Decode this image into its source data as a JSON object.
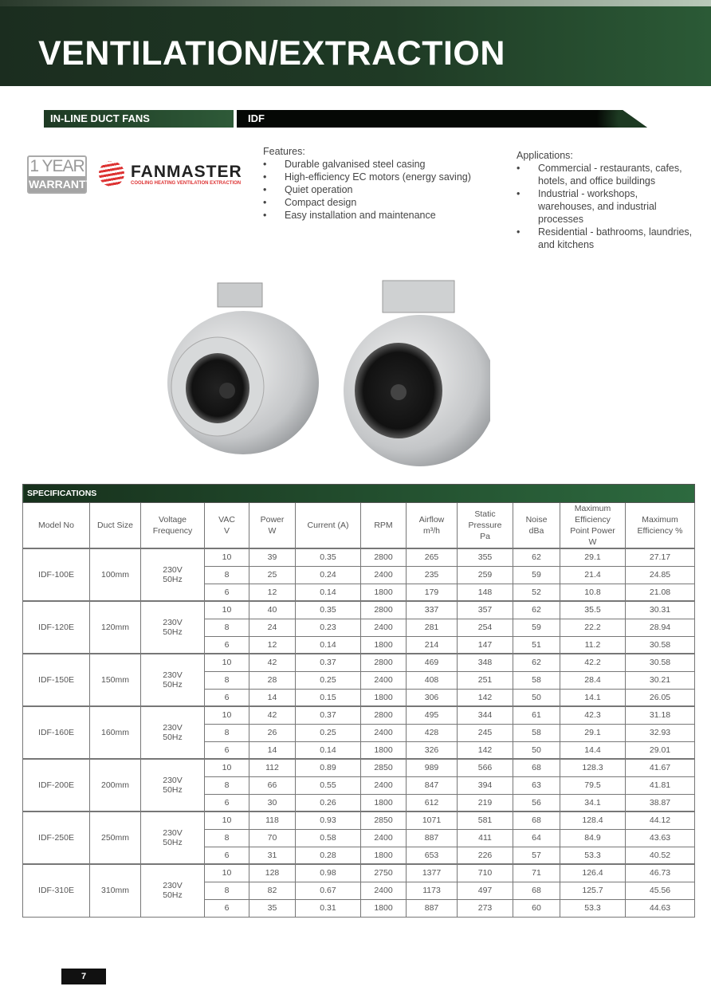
{
  "header": {
    "title": "VENTILATION/EXTRACTION"
  },
  "category": {
    "label": "IN-LINE DUCT FANS",
    "series": "IDF"
  },
  "warranty": {
    "line1": "1 YEAR",
    "line2": "WARRANTY"
  },
  "brand": {
    "name": "FANMASTER",
    "tagline": "COOLING HEATING VENTILATION EXTRACTION"
  },
  "features": {
    "heading": "Features:",
    "items": [
      "Durable galvanised steel casing",
      "High-efficiency EC motors (energy saving)",
      "Quiet operation",
      "Compact design",
      "Easy installation and maintenance"
    ]
  },
  "applications": {
    "heading": "Applications:",
    "items": [
      "Commercial - restaurants, cafes, hotels, and office buildings",
      "Industrial - workshops, warehouses, and industrial processes",
      "Residential - bathrooms, laundries, and kitchens"
    ]
  },
  "specs": {
    "title": "SPECIFICATIONS",
    "columns": [
      "Model No",
      "Duct Size",
      "Voltage\nFrequency",
      "VAC\nV",
      "Power\nW",
      "Current (A)",
      "RPM",
      "Airflow\nm³/h",
      "Static\nPressure\nPa",
      "Noise\ndBa",
      "Maximum\nEfficiency\nPoint Power\nW",
      "Maximum\nEfficiency %"
    ],
    "models": [
      {
        "model": "IDF-100E",
        "duct": "100mm",
        "voltage": "230V\n50Hz",
        "rows": [
          [
            "10",
            "39",
            "0.35",
            "2800",
            "265",
            "355",
            "62",
            "29.1",
            "27.17"
          ],
          [
            "8",
            "25",
            "0.24",
            "2400",
            "235",
            "259",
            "59",
            "21.4",
            "24.85"
          ],
          [
            "6",
            "12",
            "0.14",
            "1800",
            "179",
            "148",
            "52",
            "10.8",
            "21.08"
          ]
        ]
      },
      {
        "model": "IDF-120E",
        "duct": "120mm",
        "voltage": "230V\n50Hz",
        "rows": [
          [
            "10",
            "40",
            "0.35",
            "2800",
            "337",
            "357",
            "62",
            "35.5",
            "30.31"
          ],
          [
            "8",
            "24",
            "0.23",
            "2400",
            "281",
            "254",
            "59",
            "22.2",
            "28.94"
          ],
          [
            "6",
            "12",
            "0.14",
            "1800",
            "214",
            "147",
            "51",
            "11.2",
            "30.58"
          ]
        ]
      },
      {
        "model": "IDF-150E",
        "duct": "150mm",
        "voltage": "230V\n50Hz",
        "rows": [
          [
            "10",
            "42",
            "0.37",
            "2800",
            "469",
            "348",
            "62",
            "42.2",
            "30.58"
          ],
          [
            "8",
            "28",
            "0.25",
            "2400",
            "408",
            "251",
            "58",
            "28.4",
            "30.21"
          ],
          [
            "6",
            "14",
            "0.15",
            "1800",
            "306",
            "142",
            "50",
            "14.1",
            "26.05"
          ]
        ]
      },
      {
        "model": "IDF-160E",
        "duct": "160mm",
        "voltage": "230V\n50Hz",
        "rows": [
          [
            "10",
            "42",
            "0.37",
            "2800",
            "495",
            "344",
            "61",
            "42.3",
            "31.18"
          ],
          [
            "8",
            "26",
            "0.25",
            "2400",
            "428",
            "245",
            "58",
            "29.1",
            "32.93"
          ],
          [
            "6",
            "14",
            "0.14",
            "1800",
            "326",
            "142",
            "50",
            "14.4",
            "29.01"
          ]
        ]
      },
      {
        "model": "IDF-200E",
        "duct": "200mm",
        "voltage": "230V\n50Hz",
        "rows": [
          [
            "10",
            "112",
            "0.89",
            "2850",
            "989",
            "566",
            "68",
            "128.3",
            "41.67"
          ],
          [
            "8",
            "66",
            "0.55",
            "2400",
            "847",
            "394",
            "63",
            "79.5",
            "41.81"
          ],
          [
            "6",
            "30",
            "0.26",
            "1800",
            "612",
            "219",
            "56",
            "34.1",
            "38.87"
          ]
        ]
      },
      {
        "model": "IDF-250E",
        "duct": "250mm",
        "voltage": "230V\n50Hz",
        "rows": [
          [
            "10",
            "118",
            "0.93",
            "2850",
            "1071",
            "581",
            "68",
            "128.4",
            "44.12"
          ],
          [
            "8",
            "70",
            "0.58",
            "2400",
            "887",
            "411",
            "64",
            "84.9",
            "43.63"
          ],
          [
            "6",
            "31",
            "0.28",
            "1800",
            "653",
            "226",
            "57",
            "53.3",
            "40.52"
          ]
        ]
      },
      {
        "model": "IDF-310E",
        "duct": "310mm",
        "voltage": "230V\n50Hz",
        "rows": [
          [
            "10",
            "128",
            "0.98",
            "2750",
            "1377",
            "710",
            "71",
            "126.4",
            "46.73"
          ],
          [
            "8",
            "82",
            "0.67",
            "2400",
            "1173",
            "497",
            "68",
            "125.7",
            "45.56"
          ],
          [
            "6",
            "35",
            "0.31",
            "1800",
            "887",
            "273",
            "60",
            "53.3",
            "44.63"
          ]
        ]
      }
    ]
  },
  "footer": {
    "page": "7"
  }
}
